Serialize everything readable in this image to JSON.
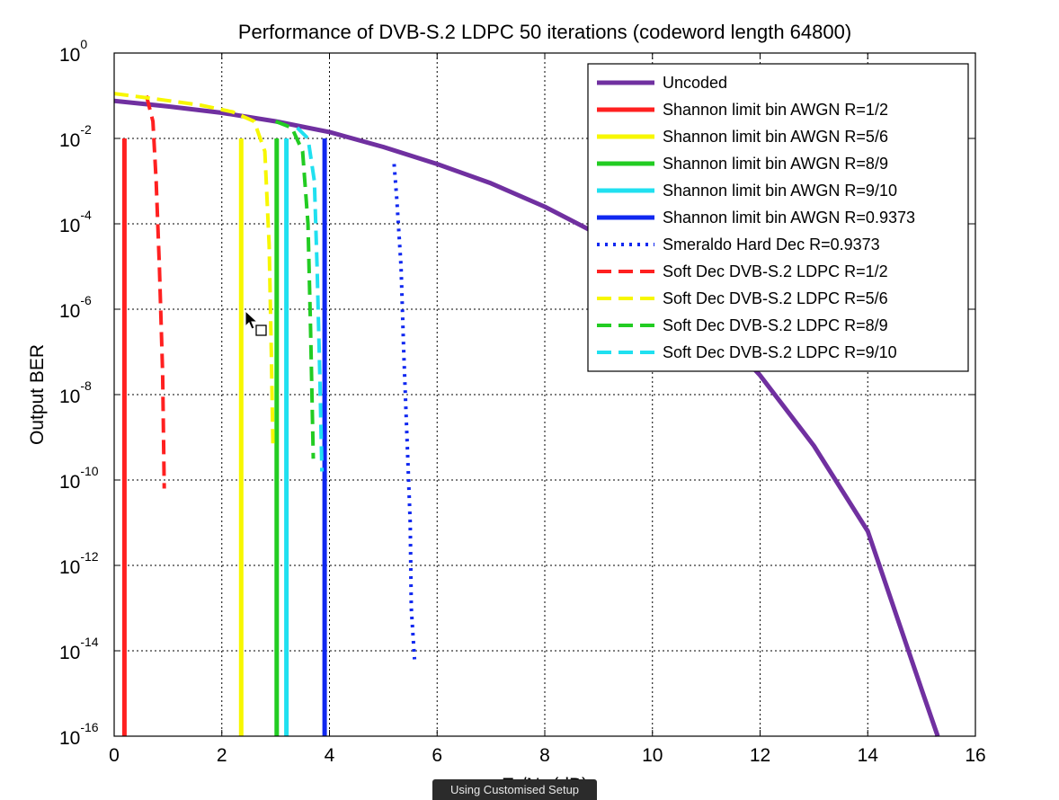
{
  "chart_data": {
    "type": "line",
    "title": "Performance of DVB-S.2 LDPC 50 iterations (codeword length 64800)",
    "xlabel": "E_b/N_o (dB)",
    "xlabel_main": "E",
    "xlabel_sub1": "b",
    "xlabel_mid": "/N",
    "xlabel_sub2": "o",
    "xlabel_tail": " (dB)",
    "ylabel": "Output BER",
    "xlim": [
      0,
      16
    ],
    "ylim_log10": [
      -16,
      0
    ],
    "y_scale": "log",
    "grid": true,
    "legend_position": "top-right",
    "x_ticks": [
      "0",
      "2",
      "4",
      "6",
      "8",
      "10",
      "12",
      "14",
      "16"
    ],
    "y_ticks": [
      {
        "base": "10",
        "exp": "0"
      },
      {
        "base": "10",
        "exp": "-2"
      },
      {
        "base": "10",
        "exp": "-4"
      },
      {
        "base": "10",
        "exp": "-6"
      },
      {
        "base": "10",
        "exp": "-8"
      },
      {
        "base": "10",
        "exp": "-10"
      },
      {
        "base": "10",
        "exp": "-12"
      },
      {
        "base": "10",
        "exp": "-14"
      },
      {
        "base": "10",
        "exp": "-16"
      }
    ],
    "series": [
      {
        "name": "Uncoded",
        "color": "#7030a0",
        "style": "solid",
        "width": 5,
        "x": [
          0,
          1,
          2,
          3,
          4,
          5,
          6,
          7,
          8,
          9,
          10,
          11,
          12,
          13,
          14,
          15,
          15.3
        ],
        "y_log10": [
          -1.12,
          -1.25,
          -1.4,
          -1.6,
          -1.85,
          -2.2,
          -2.6,
          -3.05,
          -3.6,
          -4.25,
          -5.05,
          -6.2,
          -7.55,
          -9.2,
          -11.2,
          -14.9,
          -16
        ]
      },
      {
        "name": "Shannon limit bin AWGN R=1/2",
        "color": "#ff2020",
        "style": "solid",
        "width": 5,
        "x": [
          0.19,
          0.19
        ],
        "y_log10": [
          -2,
          -16
        ]
      },
      {
        "name": "Shannon limit bin AWGN R=5/6",
        "color": "#f7f700",
        "style": "solid",
        "width": 5,
        "x": [
          2.36,
          2.36
        ],
        "y_log10": [
          -2,
          -16
        ]
      },
      {
        "name": "Shannon limit bin AWGN R=8/9",
        "color": "#22cc22",
        "style": "solid",
        "width": 5,
        "x": [
          3.02,
          3.02
        ],
        "y_log10": [
          -2,
          -16
        ]
      },
      {
        "name": "Shannon limit bin AWGN R=9/10",
        "color": "#20e0f0",
        "style": "solid",
        "width": 5,
        "x": [
          3.2,
          3.2
        ],
        "y_log10": [
          -2,
          -16
        ]
      },
      {
        "name": "Shannon limit bin AWGN R=0.9373",
        "color": "#1028f0",
        "style": "solid",
        "width": 5,
        "x": [
          3.91,
          3.91
        ],
        "y_log10": [
          -2,
          -16
        ]
      },
      {
        "name": "Smeraldo Hard Dec R=0.9373",
        "color": "#1028f0",
        "style": "dotted",
        "width": 4,
        "x": [
          5.2,
          5.25,
          5.33,
          5.38,
          5.44,
          5.5,
          5.52,
          5.58
        ],
        "y_log10": [
          -2.6,
          -3.4,
          -5.0,
          -7.0,
          -9.0,
          -11.0,
          -13.0,
          -14.2
        ]
      },
      {
        "name": "Soft Dec DVB-S.2 LDPC R=1/2",
        "color": "#ff2020",
        "style": "dashed",
        "width": 4,
        "x": [
          0.6,
          0.72,
          0.78,
          0.84,
          0.9,
          0.93
        ],
        "y_log10": [
          -1.0,
          -1.6,
          -3.0,
          -5.0,
          -7.5,
          -10.2
        ]
      },
      {
        "name": "Soft Dec DVB-S.2 LDPC R=5/6",
        "color": "#f7f700",
        "style": "dashed",
        "width": 4,
        "x": [
          0.0,
          0.8,
          1.6,
          2.2,
          2.6,
          2.8,
          2.88,
          2.92,
          2.95
        ],
        "y_log10": [
          -0.95,
          -1.08,
          -1.22,
          -1.38,
          -1.6,
          -2.3,
          -4.5,
          -7.0,
          -9.2
        ]
      },
      {
        "name": "Soft Dec DVB-S.2 LDPC R=8/9",
        "color": "#22cc22",
        "style": "dashed",
        "width": 4,
        "x": [
          3.0,
          3.3,
          3.5,
          3.6,
          3.65,
          3.7
        ],
        "y_log10": [
          -1.6,
          -1.75,
          -2.3,
          -4.0,
          -6.5,
          -9.5
        ]
      },
      {
        "name": "Soft Dec DVB-S.2 LDPC R=9/10",
        "color": "#20e0f0",
        "style": "dashed",
        "width": 4,
        "x": [
          3.4,
          3.6,
          3.72,
          3.77,
          3.82,
          3.86
        ],
        "y_log10": [
          -1.75,
          -2.0,
          -3.0,
          -5.0,
          -7.5,
          -9.8
        ]
      }
    ]
  },
  "status_tooltip": "Using Customised Setup",
  "colors": {
    "grid": "#000000",
    "axis": "#000000",
    "background": "#ffffff",
    "tooltip_bg": "#2b2b2b"
  }
}
